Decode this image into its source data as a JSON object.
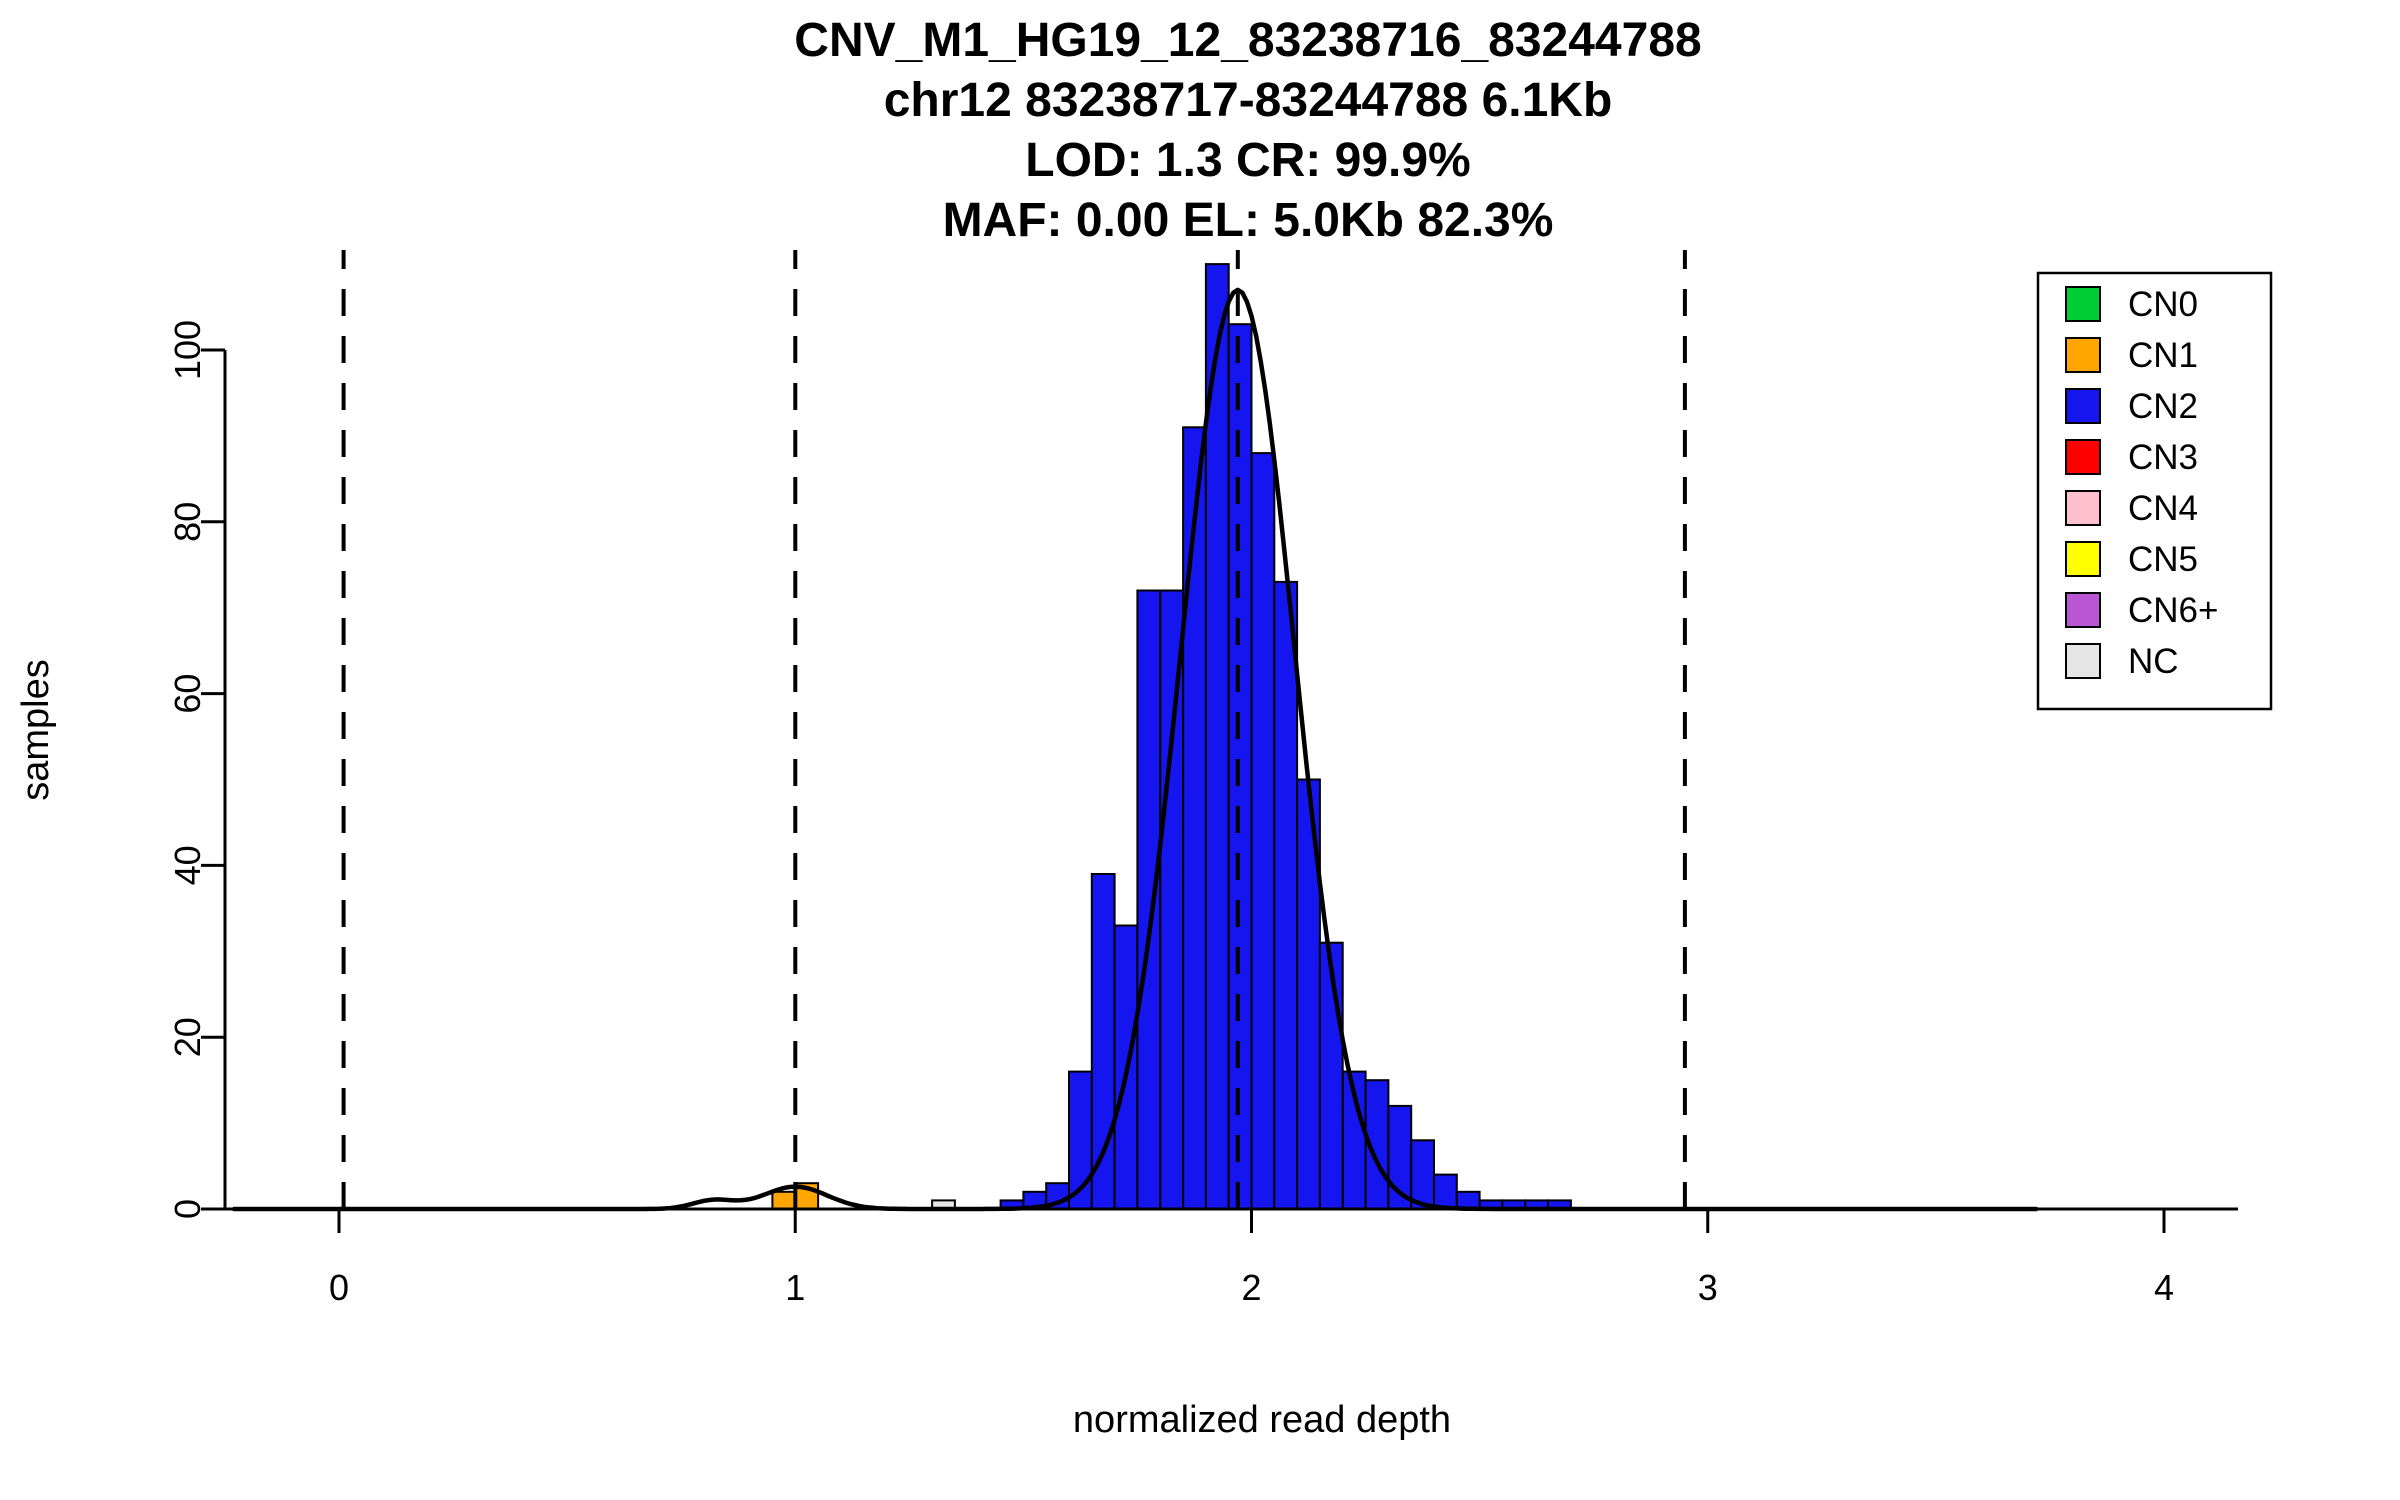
{
  "chart_data": {
    "type": "bar",
    "subtype": "cnv-read-depth-histogram-with-gaussian-fit",
    "title": [
      "CNV_M1_HG19_12_83238716_83244788",
      "chr12 83238717-83244788 6.1Kb",
      "LOD: 1.3 CR: 99.9%",
      "MAF: 0.00 EL: 5.0Kb 82.3%"
    ],
    "xlabel": "normalized read depth",
    "ylabel": "samples",
    "xlim": [
      -0.25,
      4.15
    ],
    "ylim": [
      0,
      112
    ],
    "x_ticks": [
      0,
      1,
      2,
      3,
      4
    ],
    "y_ticks": [
      0,
      20,
      40,
      60,
      80,
      100
    ],
    "grid": false,
    "legend_position": "topright",
    "bin_width": 0.05,
    "bars": [
      {
        "x0": 0.95,
        "h": 2,
        "cn": "CN1"
      },
      {
        "x0": 1.0,
        "h": 3,
        "cn": "CN1"
      },
      {
        "x0": 1.3,
        "h": 1,
        "cn": "NC"
      },
      {
        "x0": 1.45,
        "h": 1,
        "cn": "CN2"
      },
      {
        "x0": 1.5,
        "h": 2,
        "cn": "CN2"
      },
      {
        "x0": 1.55,
        "h": 3,
        "cn": "CN2"
      },
      {
        "x0": 1.6,
        "h": 16,
        "cn": "CN2"
      },
      {
        "x0": 1.65,
        "h": 39,
        "cn": "CN2"
      },
      {
        "x0": 1.7,
        "h": 33,
        "cn": "CN2"
      },
      {
        "x0": 1.75,
        "h": 72,
        "cn": "CN2"
      },
      {
        "x0": 1.8,
        "h": 72,
        "cn": "CN2"
      },
      {
        "x0": 1.85,
        "h": 91,
        "cn": "CN2"
      },
      {
        "x0": 1.9,
        "h": 110,
        "cn": "CN2"
      },
      {
        "x0": 1.95,
        "h": 103,
        "cn": "CN2"
      },
      {
        "x0": 2.0,
        "h": 88,
        "cn": "CN2"
      },
      {
        "x0": 2.05,
        "h": 73,
        "cn": "CN2"
      },
      {
        "x0": 2.1,
        "h": 50,
        "cn": "CN2"
      },
      {
        "x0": 2.15,
        "h": 31,
        "cn": "CN2"
      },
      {
        "x0": 2.2,
        "h": 16,
        "cn": "CN2"
      },
      {
        "x0": 2.25,
        "h": 15,
        "cn": "CN2"
      },
      {
        "x0": 2.3,
        "h": 12,
        "cn": "CN2"
      },
      {
        "x0": 2.35,
        "h": 8,
        "cn": "CN2"
      },
      {
        "x0": 2.4,
        "h": 4,
        "cn": "CN2"
      },
      {
        "x0": 2.45,
        "h": 2,
        "cn": "CN2"
      },
      {
        "x0": 2.5,
        "h": 1,
        "cn": "CN2"
      },
      {
        "x0": 2.55,
        "h": 1,
        "cn": "CN2"
      },
      {
        "x0": 2.6,
        "h": 1,
        "cn": "CN2"
      },
      {
        "x0": 2.65,
        "h": 1,
        "cn": "CN2"
      }
    ],
    "dashed_lines_x": [
      0.01,
      1.0,
      1.97,
      2.95
    ],
    "density_curve": {
      "x_range": [
        -0.23,
        3.72
      ],
      "components": [
        {
          "mean": 1.97,
          "sd": 0.125,
          "amp": 107
        },
        {
          "mean": 1.0,
          "sd": 0.07,
          "amp": 2.6
        },
        {
          "mean": 0.82,
          "sd": 0.045,
          "amp": 1.0
        }
      ]
    },
    "colors": {
      "CN0": "#00CC33",
      "CN1": "#FFA500",
      "CN2": "#1515F0",
      "CN3": "#FF0000",
      "CN4": "#FFC0CB",
      "CN5": "#FFFF00",
      "CN6+": "#BA55D3",
      "NC": "#E6E6E6"
    },
    "legend_labels": [
      "CN0",
      "CN1",
      "CN2",
      "CN3",
      "CN4",
      "CN5",
      "CN6+",
      "NC"
    ]
  }
}
